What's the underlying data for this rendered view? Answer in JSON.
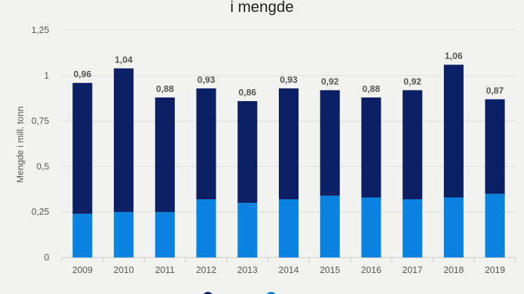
{
  "chart_data": {
    "type": "bar",
    "stacked": true,
    "title": "i mengde",
    "xlabel": "",
    "ylabel": "Mengde i mill. tonn",
    "ylim": [
      0,
      1.25
    ],
    "yticks": [
      "0",
      "0,25",
      "0,5",
      "0,75",
      "1",
      "1,25"
    ],
    "grid": true,
    "legend_position": "bottom",
    "categories": [
      "2009",
      "2010",
      "2011",
      "2012",
      "2013",
      "2014",
      "2015",
      "2016",
      "2017",
      "2018",
      "2019"
    ],
    "series": [
      {
        "values": [
          0.24,
          0.25,
          0.25,
          0.32,
          0.3,
          0.32,
          0.34,
          0.33,
          0.32,
          0.33,
          0.35
        ],
        "color": "#0a84e0"
      },
      {
        "values": [
          0.72,
          0.79,
          0.63,
          0.61,
          0.56,
          0.61,
          0.58,
          0.55,
          0.6,
          0.73,
          0.52
        ],
        "color": "#0c2165"
      }
    ],
    "totals": [
      0.96,
      1.04,
      0.88,
      0.93,
      0.86,
      0.93,
      0.92,
      0.88,
      0.92,
      1.06,
      0.87
    ],
    "total_labels": [
      "0,96",
      "1,04",
      "0,88",
      "0,93",
      "0,86",
      "0,93",
      "0,92",
      "0,88",
      "0,92",
      "1,06",
      "0,87"
    ]
  }
}
